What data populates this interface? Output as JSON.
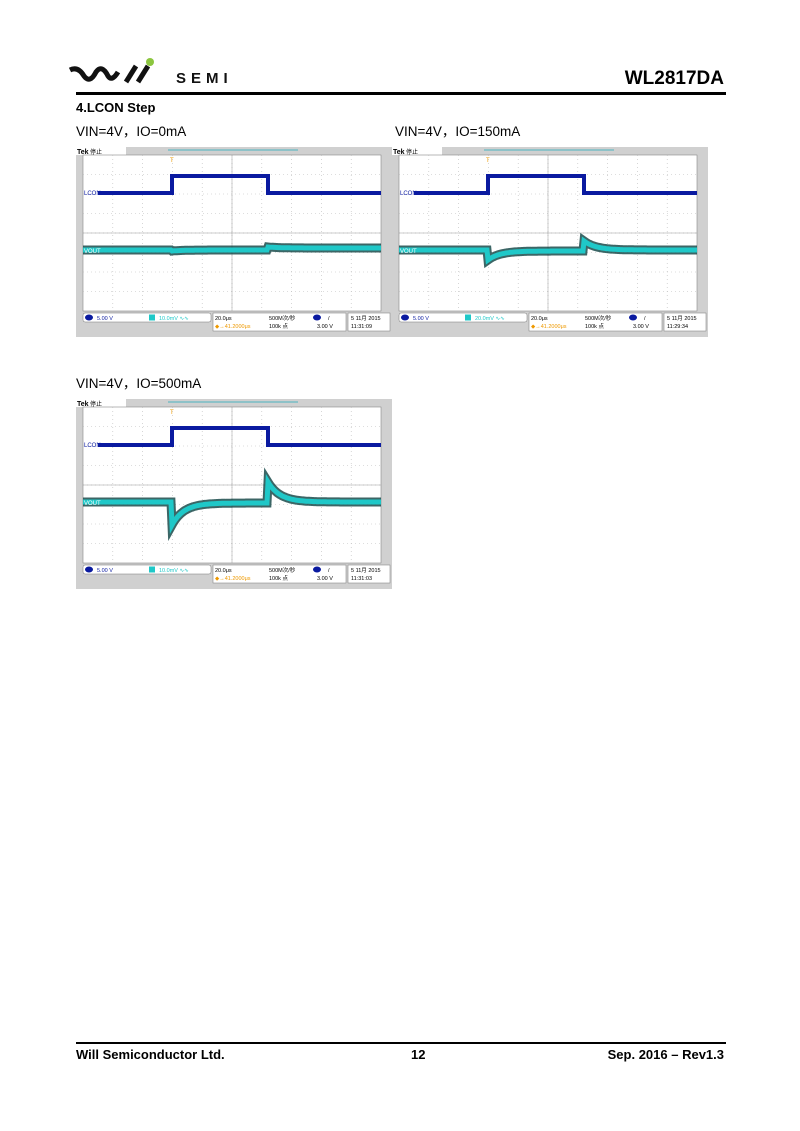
{
  "header": {
    "logo_text": "SEMI",
    "part_number": "WL2817DA"
  },
  "section_title": "4.LCON Step",
  "scopes": [
    {
      "caption": "VIN=4V，IO=0mA",
      "brand": "Tek",
      "state": "停止",
      "ch1_label": "LCON",
      "ch2_label": "VOUT",
      "ch1_scale": "5.00 V",
      "ch2_scale": "10.0mV ∿∿",
      "timebase": "20.0μs",
      "sample_rate": "500M次/秒",
      "trigger_pos": "◆→41.2000μs",
      "record_length": "100k 点",
      "trigger_level": "3.00 V",
      "trigger_slope": "/",
      "date": "5 11月 2015",
      "time": "11:31:09"
    },
    {
      "caption": "VIN=4V，IO=150mA",
      "brand": "Tek",
      "state": "停止",
      "ch1_label": "LCON",
      "ch2_label": "VOUT",
      "ch1_scale": "5.00 V",
      "ch2_scale": "20.0mV ∿∿",
      "timebase": "20.0μs",
      "sample_rate": "500M次/秒",
      "trigger_pos": "◆→41.2000μs",
      "record_length": "100k 点",
      "trigger_level": "3.00 V",
      "trigger_slope": "/",
      "date": "5 11月 2015",
      "time": "11:29:34"
    },
    {
      "caption": "VIN=4V，IO=500mA",
      "brand": "Tek",
      "state": "停止",
      "ch1_label": "LCON",
      "ch2_label": "VOUT",
      "ch1_scale": "5.00 V",
      "ch2_scale": "10.0mV ∿∿",
      "timebase": "20.0μs",
      "sample_rate": "500M次/秒",
      "trigger_pos": "◆→41.2000μs",
      "record_length": "100k 点",
      "trigger_level": "3.00 V",
      "trigger_slope": "/",
      "date": "5 11月 2015",
      "time": "11:31:03"
    }
  ],
  "footer": {
    "company": "Will Semiconductor Ltd.",
    "page": "12",
    "revision": "Sep. 2016 – Rev1.3"
  },
  "colors": {
    "ch1": "#0a1aa0",
    "ch2": "#1fc8c8",
    "ch2_edge": "#0b4040",
    "screen_frame": "#d0d0d0",
    "logo_dot": "#8cc63f"
  }
}
